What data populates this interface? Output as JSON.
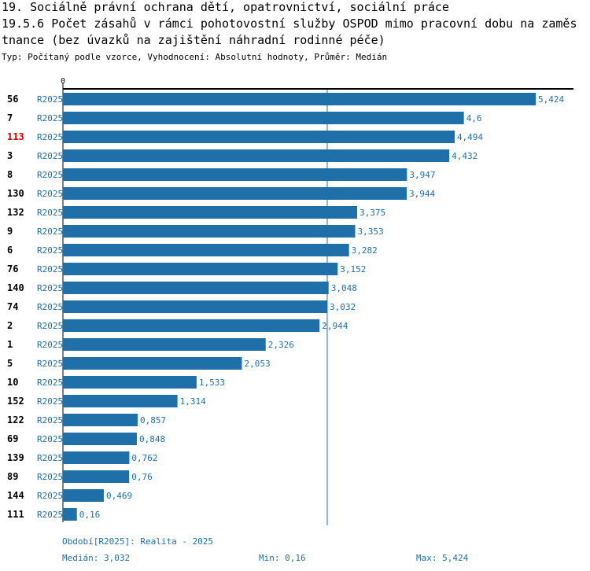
{
  "header": {
    "title_line1": "19. Sociálně právní ochrana dětí, opatrovnictví, sociální práce",
    "title_line2": "19.5.6 Počet zásahů v rámci pohotovostní služby OSPOD mimo pracovní dobu na zaměs",
    "title_line3": "tnance (bez úvazků na zajištění náhradní rodinné péče)",
    "subtitle": "Typ: Počítaný podle vzorce, Vyhodnocení: Absolutní hodnoty, Průměr: Medián"
  },
  "colors": {
    "bar": "#1f6fa8",
    "highlight_label": "#e00000",
    "text": "#000000"
  },
  "chart_data": {
    "type": "bar",
    "orientation": "horizontal",
    "title": "19.5.6 Počet zásahů v rámci pohotovostní služby OSPOD mimo pracovní dobu na zaměstnance (bez úvazků na zajištění náhradní rodinné péče)",
    "axis_zero_label": "0",
    "xlim": [
      0,
      5.424
    ],
    "series_label": "R2025",
    "highlight_category": "113",
    "median": 3.032,
    "categories": [
      "56",
      "7",
      "113",
      "3",
      "8",
      "130",
      "132",
      "9",
      "6",
      "76",
      "140",
      "74",
      "2",
      "1",
      "5",
      "10",
      "152",
      "122",
      "69",
      "139",
      "89",
      "144",
      "111"
    ],
    "values": [
      5.424,
      4.6,
      4.494,
      4.432,
      3.947,
      3.944,
      3.375,
      3.353,
      3.282,
      3.152,
      3.048,
      3.032,
      2.944,
      2.326,
      2.053,
      1.533,
      1.314,
      0.857,
      0.848,
      0.762,
      0.76,
      0.469,
      0.16
    ],
    "value_labels": [
      "5,424",
      "4,6",
      "4,494",
      "4,432",
      "3,947",
      "3,944",
      "3,375",
      "3,353",
      "3,282",
      "3,152",
      "3,048",
      "3,032",
      "2,944",
      "2,326",
      "2,053",
      "1,533",
      "1,314",
      "0,857",
      "0,848",
      "0,762",
      "0,76",
      "0,469",
      "0,16"
    ]
  },
  "footer": {
    "period": "Období[R2025]: Realita - 2025",
    "median": "Medián: 3,032",
    "min": "Min: 0,16",
    "max": "Max: 5,424"
  }
}
